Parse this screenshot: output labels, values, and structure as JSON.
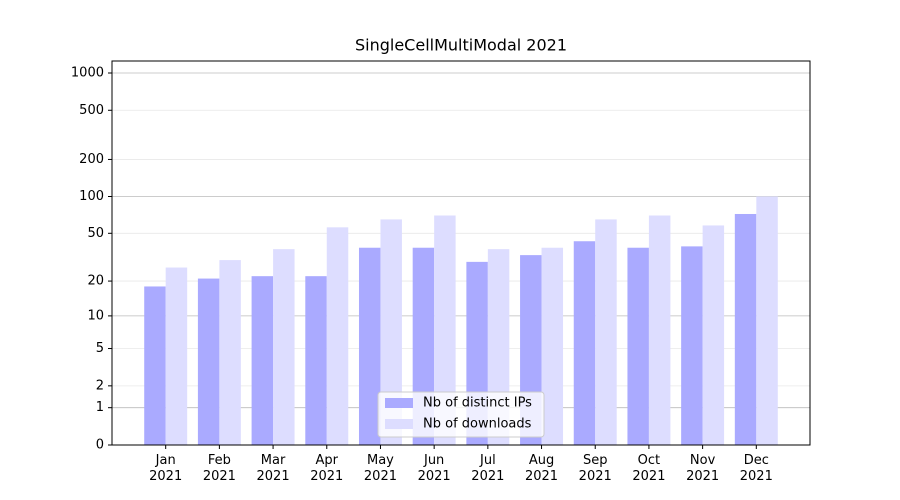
{
  "chart_data": {
    "type": "bar",
    "title": "SingleCellMultiModal 2021",
    "categories": [
      "Jan\n2021",
      "Feb\n2021",
      "Mar\n2021",
      "Apr\n2021",
      "May\n2021",
      "Jun\n2021",
      "Jul\n2021",
      "Aug\n2021",
      "Sep\n2021",
      "Oct\n2021",
      "Nov\n2021",
      "Dec\n2021"
    ],
    "series": [
      {
        "name": "Nb of distinct IPs",
        "color": "#aaaaff",
        "values": [
          18,
          21,
          22,
          22,
          38,
          38,
          29,
          33,
          43,
          38,
          39,
          72
        ]
      },
      {
        "name": "Nb of downloads",
        "color": "#ddddff",
        "values": [
          26,
          30,
          37,
          56,
          65,
          70,
          37,
          38,
          65,
          70,
          58,
          100
        ]
      }
    ],
    "yscale": "log1p",
    "ylim": [
      0,
      1250
    ],
    "yticks": [
      0,
      1,
      2,
      5,
      10,
      20,
      50,
      100,
      200,
      500,
      1000
    ],
    "grid": true,
    "legend": "lower center"
  }
}
